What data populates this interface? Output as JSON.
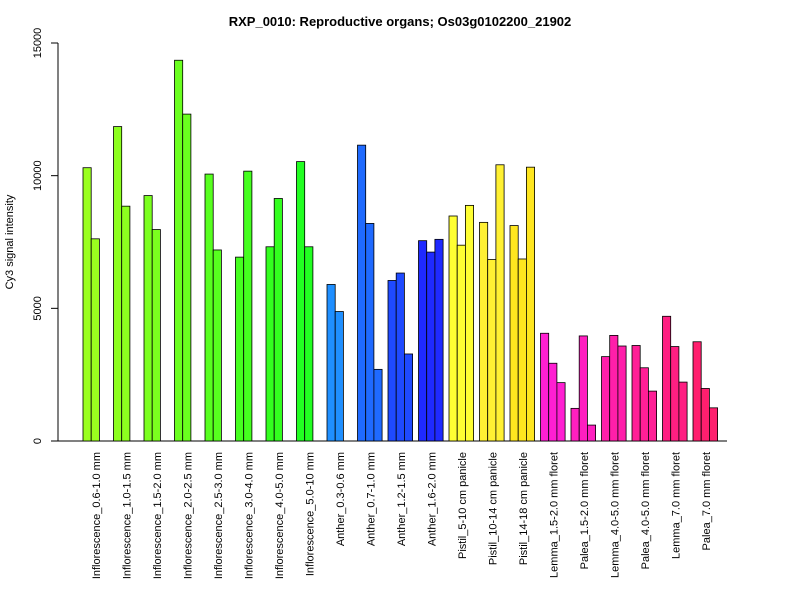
{
  "chart_data": {
    "type": "bar",
    "title": "RXP_0010: Reproductive organs; Os03g0102200_21902",
    "xlabel": "",
    "ylabel": "Cy3 signal intensity",
    "ylim": [
      0,
      15000
    ],
    "yticks": [
      0,
      5000,
      10000,
      15000
    ],
    "grid": false,
    "legend": "none",
    "groups": [
      {
        "label": "Inflorescence_0.6-1.0 mm",
        "color": "#9AFF1F",
        "values": [
          10300,
          7620
        ]
      },
      {
        "label": "Inflorescence_1.0-1.5 mm",
        "color": "#8DFF1F",
        "values": [
          11850,
          8850
        ]
      },
      {
        "label": "Inflorescence_1.5-2.0 mm",
        "color": "#7BFF1F",
        "values": [
          9250,
          7970
        ]
      },
      {
        "label": "Inflorescence_2.0-2.5 mm",
        "color": "#6AFF1F",
        "values": [
          14350,
          12320
        ]
      },
      {
        "label": "Inflorescence_2.5-3.0 mm",
        "color": "#57FF1F",
        "values": [
          10060,
          7200
        ]
      },
      {
        "label": "Inflorescence_3.0-4.0 mm",
        "color": "#45FF1F",
        "values": [
          6930,
          10170
        ]
      },
      {
        "label": "Inflorescence_4.0-5.0 mm",
        "color": "#33FF1F",
        "values": [
          7320,
          9140
        ]
      },
      {
        "label": "Inflorescence_5.0-10 mm",
        "color": "#22FF22",
        "values": [
          10530,
          7320
        ]
      },
      {
        "label": "Anther_0.3-0.6 mm",
        "color": "#1F8FFF",
        "values": [
          5900,
          4880
        ]
      },
      {
        "label": "Anther_0.7-1.0 mm",
        "color": "#1F6AFF",
        "values": [
          11150,
          8200,
          2700
        ]
      },
      {
        "label": "Anther_1.2-1.5 mm",
        "color": "#1F4AFF",
        "values": [
          6050,
          6330,
          3280
        ]
      },
      {
        "label": "Anther_1.6-2.0 mm",
        "color": "#1F2AFF",
        "values": [
          7550,
          7120,
          7600
        ]
      },
      {
        "label": "Pistil_5-10 cm panicle",
        "color": "#FFFF33",
        "values": [
          8480,
          7380,
          8880
        ]
      },
      {
        "label": "Pistil_10-14 cm panicle",
        "color": "#FFF033",
        "values": [
          8240,
          6840,
          10410
        ]
      },
      {
        "label": "Pistil_14-18 cm panicle",
        "color": "#FFE61F",
        "values": [
          8120,
          6860,
          10320
        ]
      },
      {
        "label": "Lemma_1.5-2.0 mm floret",
        "color": "#FF1FD2",
        "values": [
          4060,
          2930,
          2200
        ]
      },
      {
        "label": "Palea_1.5-2.0 mm floret",
        "color": "#FF1FC0",
        "values": [
          1230,
          3960,
          600
        ]
      },
      {
        "label": "Lemma_4.0-5.0 mm floret",
        "color": "#FF1FAA",
        "values": [
          3180,
          3980,
          3580
        ]
      },
      {
        "label": "Palea_4.0-5.0 mm floret",
        "color": "#FF1F96",
        "values": [
          3600,
          2760,
          1880
        ]
      },
      {
        "label": "Lemma_7.0 mm floret",
        "color": "#FF1F82",
        "values": [
          4700,
          3560,
          2220
        ]
      },
      {
        "label": "Palea_7.0 mm floret",
        "color": "#FF1F6E",
        "values": [
          3740,
          1980,
          1250
        ]
      }
    ]
  }
}
